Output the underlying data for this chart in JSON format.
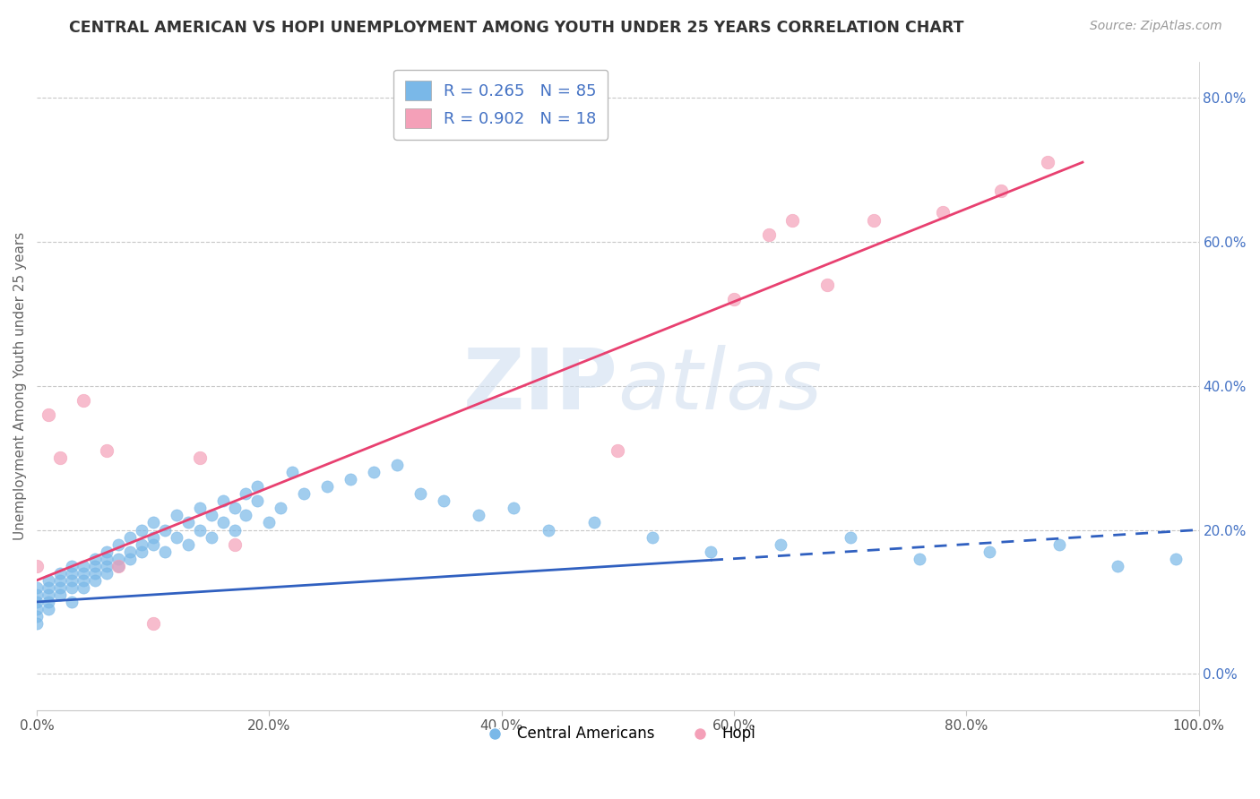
{
  "title": "CENTRAL AMERICAN VS HOPI UNEMPLOYMENT AMONG YOUTH UNDER 25 YEARS CORRELATION CHART",
  "source": "Source: ZipAtlas.com",
  "ylabel": "Unemployment Among Youth under 25 years",
  "legend_1": "R = 0.265   N = 85",
  "legend_2": "R = 0.902   N = 18",
  "legend_label_1": "Central Americans",
  "legend_label_2": "Hopi",
  "R1": 0.265,
  "N1": 85,
  "R2": 0.902,
  "N2": 18,
  "dot_color_1": "#7ab8e8",
  "dot_color_2": "#f4a0b8",
  "line_color_1": "#3060c0",
  "line_color_2": "#e84070",
  "background_color": "#ffffff",
  "watermark": "ZIPatlas",
  "title_color": "#333333",
  "axis_label_color": "#666666",
  "tick_label_color": "#555555",
  "grid_color": "#c8c8c8",
  "right_tick_color": "#4472c4",
  "legend_text_color": "#4472c4",
  "xlim": [
    0.0,
    1.0
  ],
  "ylim": [
    -0.05,
    0.85
  ],
  "xticks": [
    0.0,
    0.2,
    0.4,
    0.6,
    0.8,
    1.0
  ],
  "xtick_labels": [
    "0.0%",
    "20.0%",
    "40.0%",
    "60.0%",
    "80.0%",
    "100.0%"
  ],
  "yticks_right": [
    0.0,
    0.2,
    0.4,
    0.6,
    0.8
  ],
  "ytick_labels_right": [
    "0.0%",
    "20.0%",
    "40.0%",
    "60.0%",
    "80.0%"
  ],
  "hopi_x": [
    0.0,
    0.01,
    0.02,
    0.04,
    0.06,
    0.07,
    0.1,
    0.14,
    0.17,
    0.5,
    0.6,
    0.63,
    0.65,
    0.68,
    0.72,
    0.78,
    0.83,
    0.87
  ],
  "hopi_y": [
    0.15,
    0.36,
    0.3,
    0.38,
    0.31,
    0.15,
    0.07,
    0.3,
    0.18,
    0.31,
    0.52,
    0.61,
    0.63,
    0.54,
    0.63,
    0.64,
    0.67,
    0.71
  ],
  "ca_x": [
    0.0,
    0.0,
    0.0,
    0.0,
    0.0,
    0.0,
    0.01,
    0.01,
    0.01,
    0.01,
    0.01,
    0.02,
    0.02,
    0.02,
    0.02,
    0.03,
    0.03,
    0.03,
    0.03,
    0.03,
    0.04,
    0.04,
    0.04,
    0.04,
    0.05,
    0.05,
    0.05,
    0.05,
    0.06,
    0.06,
    0.06,
    0.06,
    0.07,
    0.07,
    0.07,
    0.08,
    0.08,
    0.08,
    0.09,
    0.09,
    0.09,
    0.1,
    0.1,
    0.1,
    0.11,
    0.11,
    0.12,
    0.12,
    0.13,
    0.13,
    0.14,
    0.14,
    0.15,
    0.15,
    0.16,
    0.16,
    0.17,
    0.17,
    0.18,
    0.18,
    0.19,
    0.19,
    0.2,
    0.21,
    0.22,
    0.23,
    0.25,
    0.27,
    0.29,
    0.31,
    0.33,
    0.35,
    0.38,
    0.41,
    0.44,
    0.48,
    0.53,
    0.58,
    0.64,
    0.7,
    0.76,
    0.82,
    0.88,
    0.93,
    0.98
  ],
  "ca_y": [
    0.1,
    0.11,
    0.12,
    0.09,
    0.08,
    0.07,
    0.13,
    0.11,
    0.12,
    0.1,
    0.09,
    0.14,
    0.12,
    0.11,
    0.13,
    0.15,
    0.13,
    0.12,
    0.14,
    0.1,
    0.15,
    0.13,
    0.14,
    0.12,
    0.16,
    0.14,
    0.13,
    0.15,
    0.17,
    0.15,
    0.14,
    0.16,
    0.18,
    0.16,
    0.15,
    0.17,
    0.19,
    0.16,
    0.18,
    0.2,
    0.17,
    0.19,
    0.21,
    0.18,
    0.2,
    0.17,
    0.22,
    0.19,
    0.21,
    0.18,
    0.23,
    0.2,
    0.22,
    0.19,
    0.24,
    0.21,
    0.23,
    0.2,
    0.25,
    0.22,
    0.26,
    0.24,
    0.21,
    0.23,
    0.28,
    0.25,
    0.26,
    0.27,
    0.28,
    0.29,
    0.25,
    0.24,
    0.22,
    0.23,
    0.2,
    0.21,
    0.19,
    0.17,
    0.18,
    0.19,
    0.16,
    0.17,
    0.18,
    0.15,
    0.16
  ],
  "ca_line_x_start": 0.0,
  "ca_line_x_solid_end": 0.58,
  "ca_line_x_end": 1.0,
  "ca_line_y_start": 0.1,
  "ca_line_y_end": 0.2,
  "hopi_line_x_start": 0.0,
  "hopi_line_x_end": 0.9,
  "hopi_line_y_start": 0.13,
  "hopi_line_y_end": 0.71
}
